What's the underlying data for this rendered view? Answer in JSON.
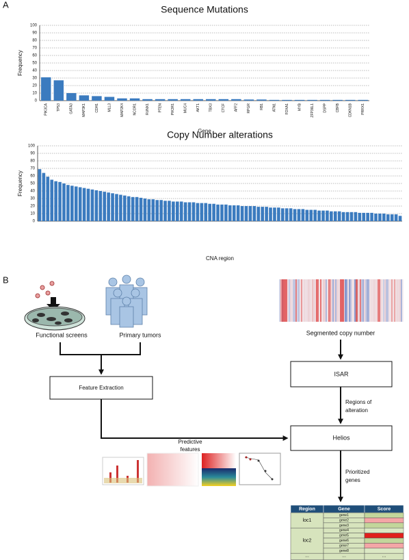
{
  "panels": [
    "A",
    "B"
  ],
  "chart_data": [
    {
      "type": "bar",
      "title": "Sequence Mutations",
      "x_label": "Gene",
      "y_label": "Frequency",
      "color": "#3b7bbf",
      "grid": true,
      "categories": [
        "PIK3CA",
        "TP53",
        "GATA3",
        "MAP3K1",
        "CDH1",
        "MLL3",
        "MAP2K4",
        "NCOR1",
        "RUNX1",
        "PTEN",
        "PIK3R1",
        "MUC4",
        "AKT1",
        "TBX3",
        "CTCF",
        "AFF2",
        "RPGR",
        "RB1",
        "ATN1",
        "FOXA1",
        "MYB",
        "ZFP36L1",
        "DSPP",
        "CBFB",
        "CDKN1B",
        "PRRX1"
      ],
      "values": [
        31,
        27,
        10,
        7,
        6,
        5,
        3,
        3,
        2,
        2,
        2,
        2,
        2,
        2,
        2,
        2,
        1.5,
        1.5,
        1,
        1,
        1,
        1,
        1,
        1,
        1,
        1
      ],
      "ylim": [
        0,
        100
      ],
      "yticks": [
        0,
        10,
        20,
        30,
        40,
        50,
        60,
        70,
        80,
        90,
        100
      ]
    },
    {
      "type": "bar",
      "title": "Copy Number alterations",
      "x_label": "CNA region",
      "y_label": "Frequency",
      "color": "#3b7bbf",
      "grid": true,
      "categories": [
        null,
        null,
        null,
        null,
        null,
        null,
        null,
        null,
        null,
        null,
        null,
        null,
        null,
        null,
        null,
        null,
        null,
        null,
        null,
        null,
        null,
        null,
        null,
        null,
        null,
        null,
        null,
        null,
        null,
        null,
        null,
        null,
        null,
        null,
        null,
        null,
        null,
        null,
        null,
        null,
        null,
        null,
        null,
        null,
        null,
        null,
        null,
        null,
        null,
        null,
        null,
        null,
        null,
        null,
        null,
        null,
        null,
        null,
        null,
        null,
        null,
        null,
        null,
        null,
        null,
        null,
        null,
        null,
        null,
        null,
        null,
        null,
        null,
        null,
        null,
        null,
        null,
        null,
        null,
        null,
        null,
        null,
        null,
        null,
        null,
        null,
        null,
        null,
        null,
        null
      ],
      "values": [
        69,
        64,
        59,
        55,
        53,
        52,
        50,
        48,
        47,
        46,
        45,
        44,
        43,
        42,
        41,
        40,
        39,
        38,
        37,
        36,
        35,
        34,
        33,
        32,
        32,
        31,
        30,
        29,
        29,
        28,
        28,
        27,
        27,
        26,
        26,
        26,
        25,
        25,
        25,
        24,
        24,
        24,
        23,
        23,
        22,
        22,
        22,
        21,
        21,
        21,
        20,
        20,
        20,
        20,
        19,
        19,
        19,
        18,
        18,
        18,
        17,
        17,
        17,
        16,
        16,
        16,
        15,
        15,
        15,
        14,
        14,
        14,
        13,
        13,
        13,
        12,
        12,
        12,
        12,
        11,
        11,
        11,
        11,
        10,
        10,
        10,
        9,
        9,
        9,
        7
      ],
      "ylim": [
        0,
        100
      ],
      "yticks": [
        0,
        10,
        20,
        30,
        40,
        50,
        60,
        70,
        80,
        90,
        100
      ]
    }
  ],
  "diagram": {
    "functional": "Functional screens",
    "tumors": "Primary tumors",
    "segmented": "Segmented copy number",
    "feature": "Feature Extraction",
    "isar": "ISAR",
    "regions": [
      "Regions of",
      "alteration"
    ],
    "helios": "Helios",
    "predictive": [
      "Predictive",
      "features"
    ],
    "prioritized": [
      "Prioritized",
      "genes"
    ],
    "table": {
      "header": [
        "Region",
        "Gene",
        "Score"
      ],
      "groups": [
        {
          "region": "loc1",
          "genes": [
            "gene1",
            "gene2",
            "gene3"
          ],
          "scores": [
            "#c3d69b",
            "#f4a6a6",
            "#c3d69b"
          ]
        },
        {
          "region": "loc2",
          "genes": [
            "gene4",
            "gene5",
            "gene6",
            "gene7",
            "gene8"
          ],
          "scores": [
            "#dbe8c4",
            "#e0201c",
            "#c3d69b",
            "#f4a6a6",
            "#dbe8c4"
          ]
        }
      ],
      "footer": [
        "...",
        "...",
        "..."
      ]
    }
  }
}
